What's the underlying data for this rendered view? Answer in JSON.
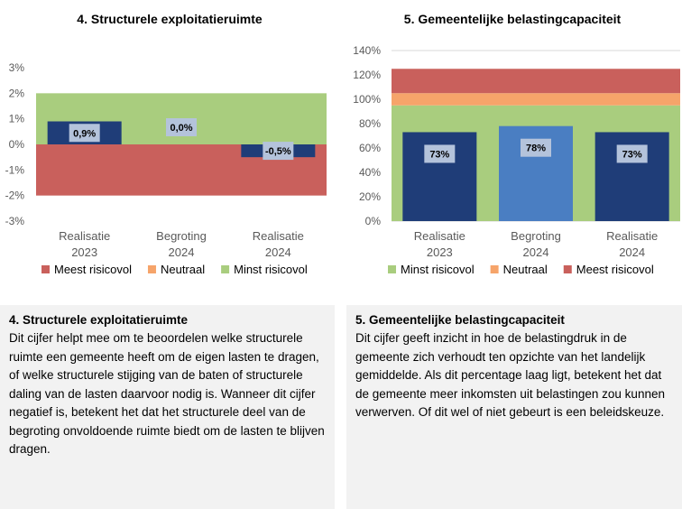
{
  "chart_data": [
    {
      "type": "bar",
      "title": "4. Structurele exploitatieruimte",
      "categories": [
        [
          "Realisatie",
          "2023"
        ],
        [
          "Begroting",
          "2024"
        ],
        [
          "Realisatie",
          "2024"
        ]
      ],
      "values": [
        0.9,
        0.0,
        -0.5
      ],
      "data_labels": [
        "0,9%",
        "0,0%",
        "-0,5%"
      ],
      "bar_colors": [
        "#1f3d78",
        "#1f3d78",
        "#1f3d78"
      ],
      "ylim": [
        -3,
        3
      ],
      "yticks": [
        "-3%",
        "-2%",
        "-1%",
        "0%",
        "1%",
        "2%",
        "3%"
      ],
      "bands": [
        {
          "name": "Meest risicovol",
          "from": -2,
          "to": 0,
          "color": "#c9605c"
        },
        {
          "name": "Neutraal",
          "from": 0,
          "to": 0,
          "color": "#f6a46a"
        },
        {
          "name": "Minst risicovol",
          "from": 0,
          "to": 2,
          "color": "#a9cd7e"
        }
      ],
      "legend": [
        "Meest risicovol",
        "Neutraal",
        "Minst risicovol"
      ],
      "legend_colors": [
        "#c9605c",
        "#f6a46a",
        "#a9cd7e"
      ],
      "legend_position": "bottom",
      "grid": false
    },
    {
      "type": "bar",
      "title": "5. Gemeentelijke belastingcapaciteit",
      "categories": [
        [
          "Realisatie",
          "2023"
        ],
        [
          "Begroting",
          "2024"
        ],
        [
          "Realisatie",
          "2024"
        ]
      ],
      "values": [
        73,
        78,
        73
      ],
      "data_labels": [
        "73%",
        "78%",
        "73%"
      ],
      "bar_colors": [
        "#1f3d78",
        "#4a7ec2",
        "#1f3d78"
      ],
      "ylim": [
        0,
        140
      ],
      "yticks": [
        "0%",
        "20%",
        "40%",
        "60%",
        "80%",
        "100%",
        "120%",
        "140%"
      ],
      "bands": [
        {
          "name": "Minst risicovol",
          "from": 0,
          "to": 95,
          "color": "#a9cd7e"
        },
        {
          "name": "Neutraal",
          "from": 95,
          "to": 105,
          "color": "#f6a46a"
        },
        {
          "name": "Meest risicovol",
          "from": 105,
          "to": 125,
          "color": "#c9605c"
        }
      ],
      "legend": [
        "Minst risicovol",
        "Neutraal",
        "Meest risicovol"
      ],
      "legend_colors": [
        "#a9cd7e",
        "#f6a46a",
        "#c9605c"
      ],
      "legend_position": "bottom",
      "grid": true
    }
  ],
  "panels": [
    {
      "title": "4. Structurele exploitatieruimte",
      "body": "Dit cijfer helpt mee om te beoordelen welke structurele ruimte een gemeente heeft om de eigen lasten te dragen, of welke structurele stijging van de baten of structurele daling van de lasten daarvoor nodig is. Wanneer dit cijfer negatief is, betekent het dat het structurele deel van de begroting onvoldoende ruimte biedt om de lasten te blijven dragen."
    },
    {
      "title": "5. Gemeentelijke belastingcapaciteit",
      "body": "Dit cijfer geeft inzicht in hoe de belastingdruk in de gemeente zich verhoudt ten opzichte van het landelijk gemiddelde. Als dit percentage laag ligt, betekent het dat de gemeente meer inkomsten uit belastingen zou kunnen verwerven. Of dit wel of niet gebeurt is een beleidskeuze."
    }
  ]
}
